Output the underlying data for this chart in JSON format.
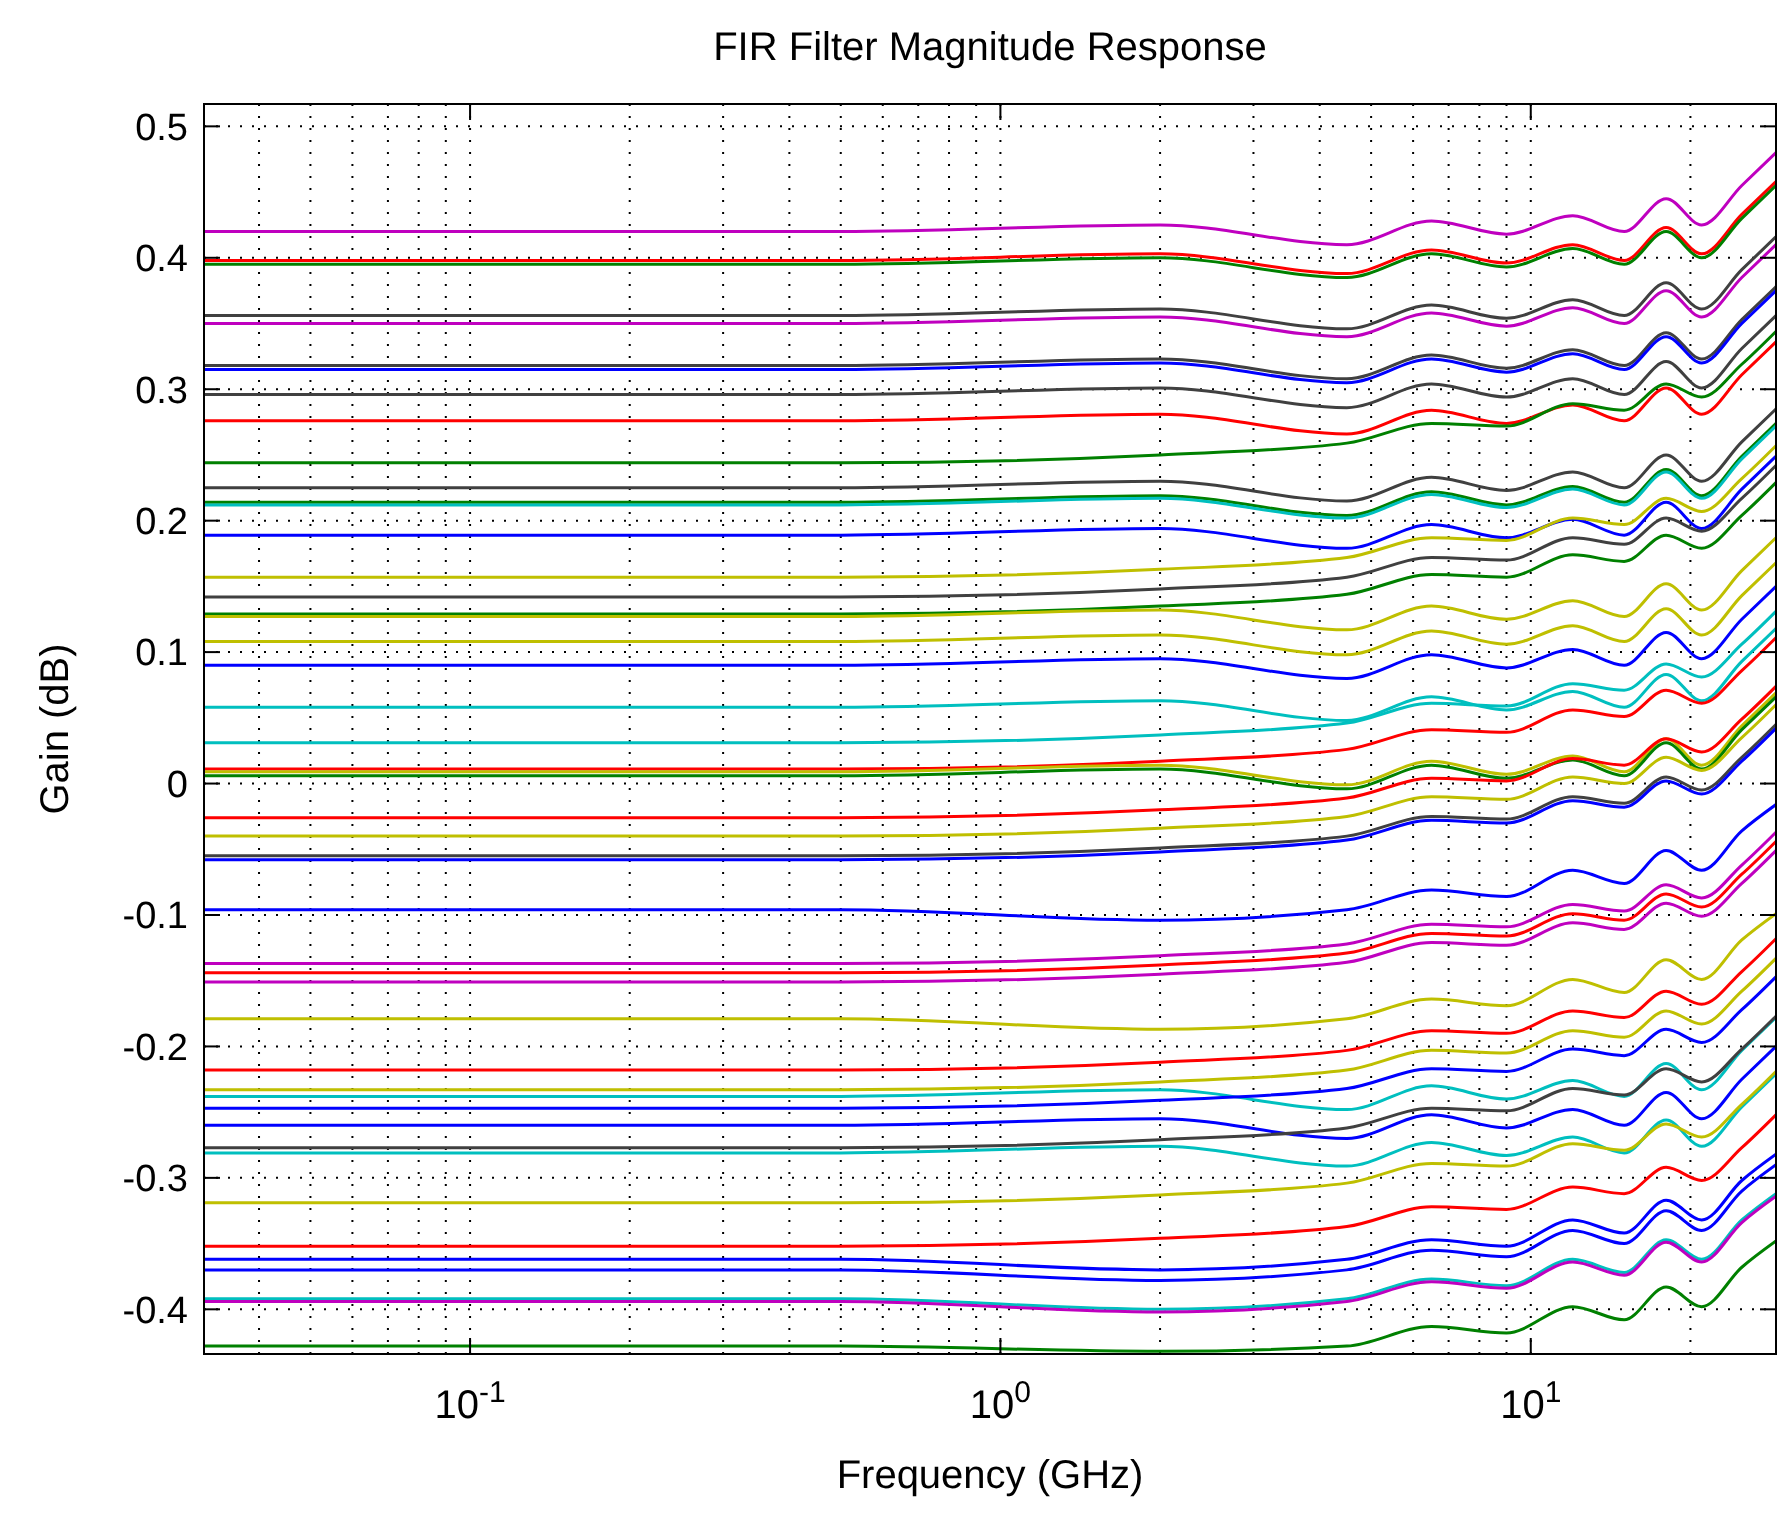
{
  "chart_data": {
    "type": "line",
    "title": "FIR Filter Magnitude Response",
    "xlabel": "Frequency (GHz)",
    "ylabel": "Gain (dB)",
    "log": "x",
    "grid": true,
    "marker": "none",
    "line_style": "solid",
    "xlim": [
      0.0315,
      29
    ],
    "ylim": [
      -0.434,
      0.517
    ],
    "xticks": [
      {
        "value": 0.1,
        "label": "10$^{-1}$"
      },
      {
        "value": 1,
        "label": "10$^{0}$"
      },
      {
        "value": 10,
        "label": "10$^{1}$"
      }
    ],
    "yticks": [
      {
        "value": -0.4,
        "label": "-0.4"
      },
      {
        "value": -0.3,
        "label": "-0.3"
      },
      {
        "value": -0.2,
        "label": "-0.2"
      },
      {
        "value": -0.1,
        "label": "-0.1"
      },
      0,
      {
        "value": 0.1,
        "label": "0.1"
      },
      {
        "value": 0.2,
        "label": "0.2"
      },
      {
        "value": 0.3,
        "label": "0.3"
      },
      {
        "value": 0.4,
        "label": "0.4"
      },
      {
        "value": 0.5,
        "label": "0.5"
      }
    ],
    "x": [
      0.0315,
      0.5,
      2,
      4.5,
      6.5,
      9,
      12,
      15,
      18,
      21,
      25,
      29
    ],
    "series": [
      {
        "color": "#bf00bf",
        "values": [
          0.42,
          0.42,
          0.425,
          0.41,
          0.428,
          0.418,
          0.432,
          0.42,
          0.445,
          0.425,
          0.455,
          0.48
        ]
      },
      {
        "color": "#ff0000",
        "values": [
          0.398,
          0.398,
          0.403,
          0.388,
          0.406,
          0.396,
          0.41,
          0.398,
          0.423,
          0.403,
          0.433,
          0.458
        ]
      },
      {
        "color": "#008000",
        "values": [
          0.395,
          0.395,
          0.4,
          0.385,
          0.403,
          0.393,
          0.407,
          0.395,
          0.42,
          0.4,
          0.43,
          0.455
        ]
      },
      {
        "color": "#404040",
        "values": [
          0.356,
          0.356,
          0.361,
          0.346,
          0.364,
          0.354,
          0.368,
          0.356,
          0.381,
          0.361,
          0.391,
          0.416
        ]
      },
      {
        "color": "#bf00bf",
        "values": [
          0.35,
          0.35,
          0.355,
          0.34,
          0.358,
          0.348,
          0.362,
          0.35,
          0.375,
          0.355,
          0.385,
          0.41
        ]
      },
      {
        "color": "#404040",
        "values": [
          0.318,
          0.318,
          0.323,
          0.308,
          0.326,
          0.316,
          0.33,
          0.318,
          0.343,
          0.323,
          0.353,
          0.378
        ]
      },
      {
        "color": "#0000ff",
        "values": [
          0.315,
          0.315,
          0.32,
          0.305,
          0.323,
          0.313,
          0.327,
          0.315,
          0.34,
          0.32,
          0.35,
          0.375
        ]
      },
      {
        "color": "#404040",
        "values": [
          0.296,
          0.296,
          0.301,
          0.286,
          0.304,
          0.294,
          0.308,
          0.296,
          0.321,
          0.301,
          0.331,
          0.356
        ]
      },
      {
        "color": "#ff0000",
        "values": [
          0.276,
          0.276,
          0.281,
          0.266,
          0.284,
          0.274,
          0.288,
          0.276,
          0.301,
          0.281,
          0.311,
          0.336
        ]
      },
      {
        "color": "#008000",
        "values": [
          0.244,
          0.244,
          0.25,
          0.259,
          0.274,
          0.272,
          0.289,
          0.284,
          0.304,
          0.294,
          0.319,
          0.344
        ]
      },
      {
        "color": "#404040",
        "values": [
          0.225,
          0.225,
          0.23,
          0.215,
          0.233,
          0.223,
          0.237,
          0.225,
          0.25,
          0.23,
          0.26,
          0.285
        ]
      },
      {
        "color": "#008000",
        "values": [
          0.214,
          0.214,
          0.219,
          0.204,
          0.222,
          0.212,
          0.226,
          0.214,
          0.239,
          0.219,
          0.249,
          0.274
        ]
      },
      {
        "color": "#00bfbf",
        "values": [
          0.212,
          0.212,
          0.217,
          0.202,
          0.22,
          0.21,
          0.224,
          0.212,
          0.237,
          0.217,
          0.247,
          0.272
        ]
      },
      {
        "color": "#0000ff",
        "values": [
          0.189,
          0.189,
          0.194,
          0.179,
          0.197,
          0.187,
          0.201,
          0.189,
          0.214,
          0.194,
          0.224,
          0.249
        ]
      },
      {
        "color": "#bfbf00",
        "values": [
          0.157,
          0.157,
          0.163,
          0.172,
          0.187,
          0.185,
          0.202,
          0.197,
          0.217,
          0.207,
          0.232,
          0.257
        ]
      },
      {
        "color": "#404040",
        "values": [
          0.142,
          0.142,
          0.148,
          0.157,
          0.172,
          0.17,
          0.187,
          0.182,
          0.202,
          0.192,
          0.217,
          0.242
        ]
      },
      {
        "color": "#008000",
        "values": [
          0.129,
          0.129,
          0.135,
          0.144,
          0.159,
          0.157,
          0.174,
          0.169,
          0.189,
          0.179,
          0.204,
          0.229
        ]
      },
      {
        "color": "#bfbf00",
        "values": [
          0.127,
          0.127,
          0.132,
          0.117,
          0.135,
          0.125,
          0.139,
          0.127,
          0.152,
          0.132,
          0.162,
          0.187
        ]
      },
      {
        "color": "#bfbf00",
        "values": [
          0.108,
          0.108,
          0.113,
          0.098,
          0.116,
          0.106,
          0.12,
          0.108,
          0.133,
          0.113,
          0.143,
          0.168
        ]
      },
      {
        "color": "#0000ff",
        "values": [
          0.09,
          0.09,
          0.095,
          0.08,
          0.098,
          0.088,
          0.102,
          0.09,
          0.115,
          0.095,
          0.125,
          0.15
        ]
      },
      {
        "color": "#00bfbf",
        "values": [
          0.058,
          0.058,
          0.063,
          0.048,
          0.066,
          0.056,
          0.07,
          0.058,
          0.083,
          0.063,
          0.093,
          0.118
        ]
      },
      {
        "color": "#00bfbf",
        "values": [
          0.031,
          0.031,
          0.037,
          0.046,
          0.061,
          0.059,
          0.076,
          0.071,
          0.091,
          0.081,
          0.106,
          0.131
        ]
      },
      {
        "color": "#ff0000",
        "values": [
          0.011,
          0.011,
          0.017,
          0.026,
          0.041,
          0.039,
          0.056,
          0.051,
          0.071,
          0.061,
          0.086,
          0.111
        ]
      },
      {
        "color": "#bfbf00",
        "values": [
          0.009,
          0.009,
          0.014,
          -0.001,
          0.017,
          0.007,
          0.021,
          0.009,
          0.034,
          0.014,
          0.044,
          0.069
        ]
      },
      {
        "color": "#008000",
        "values": [
          0.006,
          0.006,
          0.011,
          -0.004,
          0.014,
          0.004,
          0.018,
          0.006,
          0.031,
          0.011,
          0.041,
          0.066
        ]
      },
      {
        "color": "#ff0000",
        "values": [
          -0.026,
          -0.026,
          -0.02,
          -0.011,
          0.004,
          0.002,
          0.019,
          0.014,
          0.034,
          0.024,
          0.049,
          0.074
        ]
      },
      {
        "color": "#bfbf00",
        "values": [
          -0.04,
          -0.04,
          -0.034,
          -0.025,
          -0.01,
          -0.012,
          0.005,
          0,
          0.02,
          0.01,
          0.035,
          0.06
        ]
      },
      {
        "color": "#404040",
        "values": [
          -0.055,
          -0.055,
          -0.049,
          -0.04,
          -0.025,
          -0.027,
          -0.01,
          -0.015,
          0.005,
          -0.005,
          0.02,
          0.045
        ]
      },
      {
        "color": "#0000ff",
        "values": [
          -0.058,
          -0.058,
          -0.052,
          -0.043,
          -0.028,
          -0.03,
          -0.013,
          -0.018,
          0.002,
          -0.008,
          0.017,
          0.042
        ]
      },
      {
        "color": "#0000ff",
        "values": [
          -0.096,
          -0.096,
          -0.104,
          -0.096,
          -0.081,
          -0.086,
          -0.066,
          -0.076,
          -0.051,
          -0.066,
          -0.036,
          -0.016
        ]
      },
      {
        "color": "#bf00bf",
        "values": [
          -0.137,
          -0.137,
          -0.131,
          -0.122,
          -0.107,
          -0.109,
          -0.092,
          -0.097,
          -0.077,
          -0.087,
          -0.062,
          -0.037
        ]
      },
      {
        "color": "#ff0000",
        "values": [
          -0.144,
          -0.144,
          -0.138,
          -0.129,
          -0.114,
          -0.116,
          -0.099,
          -0.104,
          -0.084,
          -0.094,
          -0.069,
          -0.044
        ]
      },
      {
        "color": "#bf00bf",
        "values": [
          -0.151,
          -0.151,
          -0.145,
          -0.136,
          -0.121,
          -0.123,
          -0.106,
          -0.111,
          -0.091,
          -0.101,
          -0.076,
          -0.051
        ]
      },
      {
        "color": "#bfbf00",
        "values": [
          -0.179,
          -0.179,
          -0.187,
          -0.179,
          -0.164,
          -0.169,
          -0.149,
          -0.159,
          -0.134,
          -0.149,
          -0.119,
          -0.099
        ]
      },
      {
        "color": "#ff0000",
        "values": [
          -0.218,
          -0.218,
          -0.212,
          -0.203,
          -0.188,
          -0.19,
          -0.173,
          -0.178,
          -0.158,
          -0.168,
          -0.143,
          -0.118
        ]
      },
      {
        "color": "#bfbf00",
        "values": [
          -0.233,
          -0.233,
          -0.227,
          -0.218,
          -0.203,
          -0.205,
          -0.188,
          -0.193,
          -0.173,
          -0.183,
          -0.158,
          -0.133
        ]
      },
      {
        "color": "#00bfbf",
        "values": [
          -0.238,
          -0.238,
          -0.233,
          -0.248,
          -0.23,
          -0.24,
          -0.226,
          -0.238,
          -0.213,
          -0.233,
          -0.203,
          -0.178
        ]
      },
      {
        "color": "#0000ff",
        "values": [
          -0.247,
          -0.247,
          -0.241,
          -0.232,
          -0.217,
          -0.219,
          -0.202,
          -0.207,
          -0.187,
          -0.197,
          -0.172,
          -0.147
        ]
      },
      {
        "color": "#0000ff",
        "values": [
          -0.26,
          -0.26,
          -0.255,
          -0.27,
          -0.252,
          -0.262,
          -0.248,
          -0.26,
          -0.235,
          -0.255,
          -0.225,
          -0.2
        ]
      },
      {
        "color": "#404040",
        "values": [
          -0.277,
          -0.277,
          -0.271,
          -0.262,
          -0.247,
          -0.249,
          -0.232,
          -0.237,
          -0.217,
          -0.227,
          -0.202,
          -0.177
        ]
      },
      {
        "color": "#00bfbf",
        "values": [
          -0.281,
          -0.281,
          -0.276,
          -0.291,
          -0.273,
          -0.283,
          -0.269,
          -0.281,
          -0.256,
          -0.276,
          -0.246,
          -0.221
        ]
      },
      {
        "color": "#bfbf00",
        "values": [
          -0.319,
          -0.319,
          -0.313,
          -0.304,
          -0.289,
          -0.291,
          -0.274,
          -0.279,
          -0.259,
          -0.269,
          -0.244,
          -0.219
        ]
      },
      {
        "color": "#ff0000",
        "values": [
          -0.352,
          -0.352,
          -0.346,
          -0.337,
          -0.322,
          -0.324,
          -0.307,
          -0.312,
          -0.292,
          -0.302,
          -0.277,
          -0.252
        ]
      },
      {
        "color": "#0000ff",
        "values": [
          -0.362,
          -0.362,
          -0.37,
          -0.362,
          -0.347,
          -0.352,
          -0.332,
          -0.342,
          -0.317,
          -0.332,
          -0.302,
          -0.282
        ]
      },
      {
        "color": "#0000ff",
        "values": [
          -0.37,
          -0.37,
          -0.378,
          -0.37,
          -0.355,
          -0.36,
          -0.34,
          -0.35,
          -0.325,
          -0.34,
          -0.31,
          -0.29
        ]
      },
      {
        "color": "#00bfbf",
        "values": [
          -0.392,
          -0.392,
          -0.4,
          -0.392,
          -0.377,
          -0.382,
          -0.362,
          -0.372,
          -0.347,
          -0.362,
          -0.332,
          -0.312
        ]
      },
      {
        "color": "#bf00bf",
        "values": [
          -0.394,
          -0.394,
          -0.402,
          -0.394,
          -0.379,
          -0.384,
          -0.364,
          -0.374,
          -0.349,
          -0.364,
          -0.334,
          -0.314
        ]
      },
      {
        "color": "#008000",
        "values": [
          -0.428,
          -0.428,
          -0.432,
          -0.428,
          -0.413,
          -0.418,
          -0.398,
          -0.408,
          -0.383,
          -0.398,
          -0.368,
          -0.348
        ]
      }
    ]
  }
}
